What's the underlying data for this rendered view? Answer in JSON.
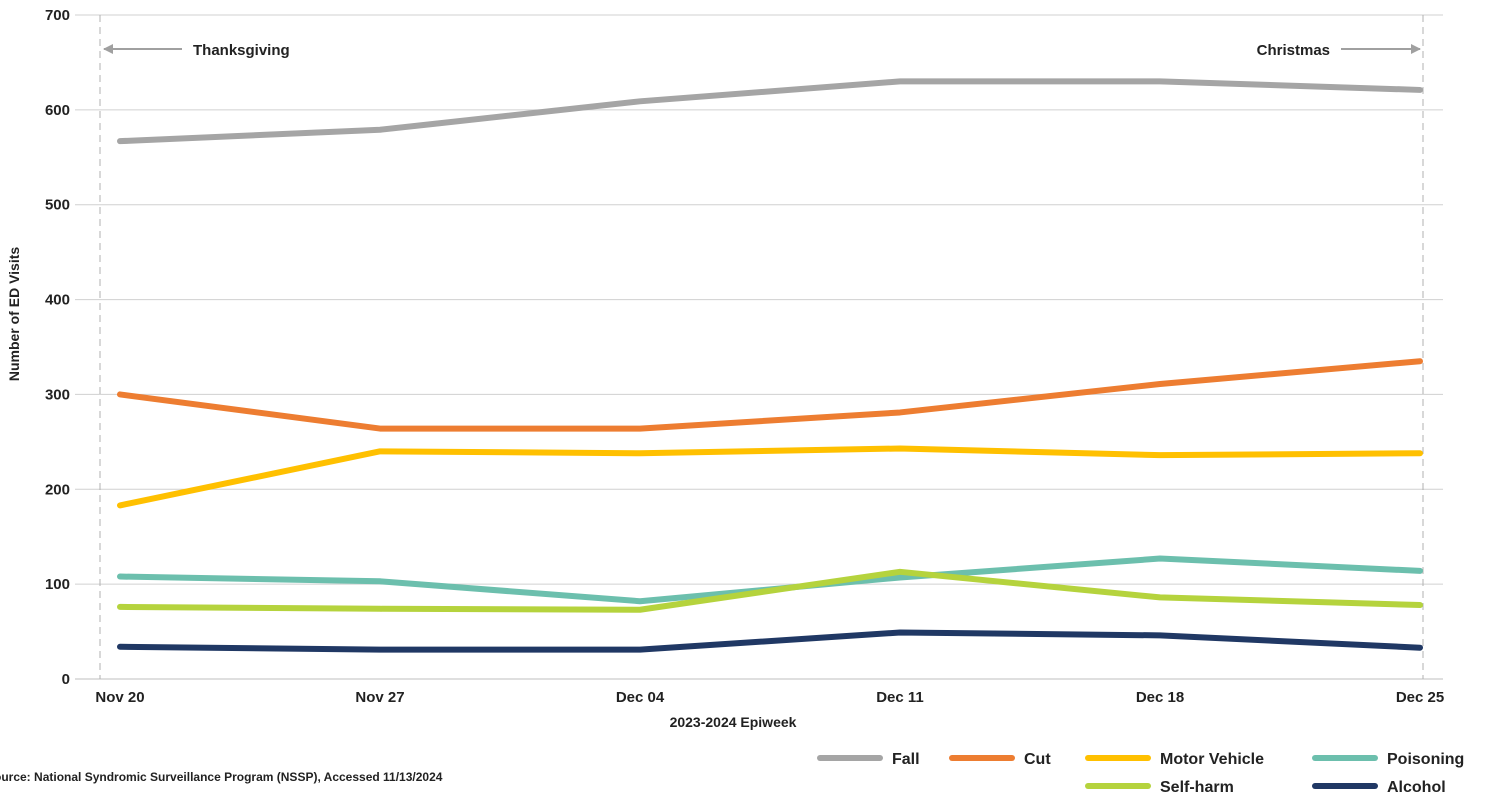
{
  "chart_data": {
    "type": "line",
    "xlabel": "2023-2024 Epiweek",
    "ylabel": "Number of ED Visits",
    "categories": [
      "Nov 20",
      "Nov 27",
      "Dec 04",
      "Dec 11",
      "Dec 18",
      "Dec 25"
    ],
    "ylim": [
      0,
      700
    ],
    "yticks": [
      0,
      100,
      200,
      300,
      400,
      500,
      600,
      700
    ],
    "grid": true,
    "legend_position": "bottom-right",
    "series": [
      {
        "name": "Fall",
        "color": "#a5a5a5",
        "values": [
          567,
          579,
          609,
          630,
          630,
          621
        ]
      },
      {
        "name": "Cut",
        "color": "#ed7d31",
        "values": [
          300,
          264,
          264,
          281,
          311,
          335
        ]
      },
      {
        "name": "Motor Vehicle",
        "color": "#ffc000",
        "values": [
          183,
          240,
          238,
          243,
          236,
          238
        ]
      },
      {
        "name": "Poisoning",
        "color": "#6cbfad",
        "values": [
          108,
          103,
          82,
          107,
          127,
          114
        ]
      },
      {
        "name": "Self-harm",
        "color": "#b5d33d",
        "values": [
          76,
          74,
          73,
          113,
          86,
          78
        ]
      },
      {
        "name": "Alcohol",
        "color": "#203864",
        "values": [
          34,
          31,
          31,
          49,
          46,
          33
        ]
      }
    ],
    "annotations": [
      {
        "label": "Thanksgiving",
        "category_index": 0,
        "arrow": "left"
      },
      {
        "label": "Christmas",
        "category_index": 5,
        "arrow": "right"
      }
    ]
  },
  "source": {
    "prefix": "ource:",
    "text": "National Syndromic Surveillance Program (NSSP), Accessed 11/13/2024"
  }
}
